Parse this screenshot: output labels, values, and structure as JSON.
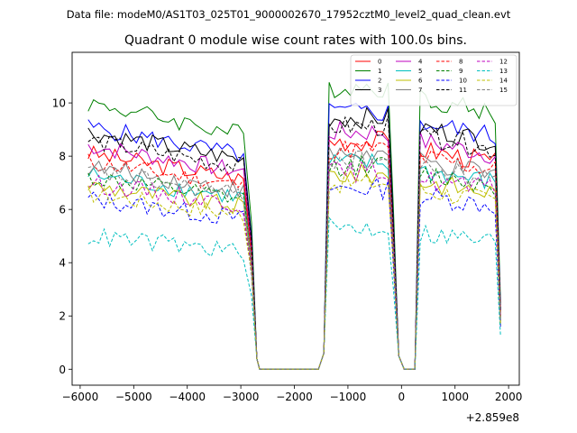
{
  "suptitle": "Data file: modeM0/AS1T03_025T01_9000002670_17952cztM0_level2_quad_clean.evt",
  "chart_data": {
    "type": "line",
    "title": "Quadrant 0 module wise count rates with 100.0s bins.",
    "xlabel": "",
    "ylabel": "",
    "x_offset_label": "+2.859e8",
    "xlim": [
      -6150,
      2200
    ],
    "ylim": [
      -0.6,
      11.9
    ],
    "xticks": [
      -6000,
      -5000,
      -4000,
      -3000,
      -2000,
      -1000,
      0,
      1000,
      2000
    ],
    "xtick_labels": [
      "−6000",
      "−5000",
      "−4000",
      "−3000",
      "−2000",
      "−1000",
      "0",
      "1000",
      "2000"
    ],
    "yticks": [
      0,
      2,
      4,
      6,
      8,
      10
    ],
    "ytick_labels": [
      "0",
      "2",
      "4",
      "6",
      "8",
      "10"
    ],
    "legend_loc": "upper right",
    "legend_ncol": 4,
    "x_segments": [
      [
        -5850,
        -2900
      ],
      [
        -1350,
        -250
      ],
      [
        350,
        1750
      ]
    ],
    "x_zero": [
      -2650,
      -1550
    ],
    "series": [
      {
        "name": "0",
        "color": "#ff0000",
        "style": "solid",
        "base": 8.1
      },
      {
        "name": "1",
        "color": "#008000",
        "style": "solid",
        "base": 10.0
      },
      {
        "name": "2",
        "color": "#0000ff",
        "style": "solid",
        "base": 9.1
      },
      {
        "name": "3",
        "color": "#000000",
        "style": "solid",
        "base": 8.9
      },
      {
        "name": "4",
        "color": "#bf00bf",
        "style": "solid",
        "base": 8.4
      },
      {
        "name": "5",
        "color": "#00bfbf",
        "style": "solid",
        "base": 7.3
      },
      {
        "name": "6",
        "color": "#bfbf00",
        "style": "solid",
        "base": 6.9
      },
      {
        "name": "7",
        "color": "#808080",
        "style": "solid",
        "base": 7.6
      },
      {
        "name": "8",
        "color": "#ff0000",
        "style": "dashed",
        "base": 7.8
      },
      {
        "name": "9",
        "color": "#008000",
        "style": "dashed",
        "base": 7.2
      },
      {
        "name": "10",
        "color": "#0000ff",
        "style": "dashed",
        "base": 6.4
      },
      {
        "name": "11",
        "color": "#000000",
        "style": "dashed",
        "base": 8.6
      },
      {
        "name": "12",
        "color": "#bf00bf",
        "style": "dashed",
        "base": 7.0
      },
      {
        "name": "13",
        "color": "#00bfbf",
        "style": "dashed",
        "base": 5.0
      },
      {
        "name": "14",
        "color": "#bfbf00",
        "style": "dashed",
        "base": 6.6
      },
      {
        "name": "15",
        "color": "#808080",
        "style": "dashed",
        "base": 7.4
      }
    ]
  }
}
